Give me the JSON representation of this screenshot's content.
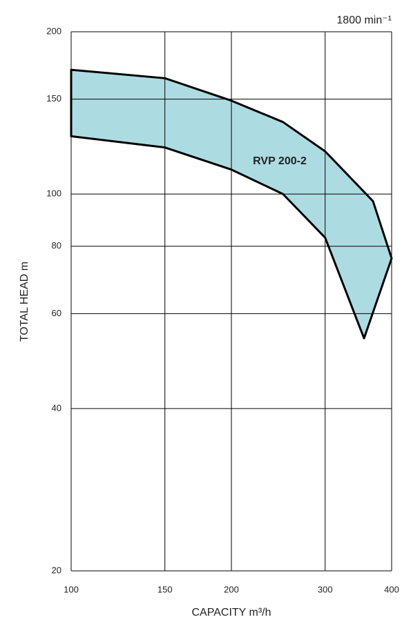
{
  "chart_data": {
    "type": "area",
    "title": "1800 min⁻¹",
    "x_label": "CAPACITY  m³/h",
    "y_label": "TOTAL HEAD  m",
    "annotation": "RVP 200-2",
    "xlog": true,
    "ylog": true,
    "grid": true,
    "fill": "#acdce2",
    "stroke": "#000000",
    "xlim": [
      100,
      400
    ],
    "ylim": [
      20,
      200
    ],
    "xticks": [
      100,
      150,
      200,
      300,
      400
    ],
    "yticks": [
      20,
      40,
      60,
      80,
      100,
      150,
      200
    ],
    "upper": {
      "x": [
        100,
        150,
        200,
        250,
        300,
        369,
        400
      ],
      "values": [
        170,
        164,
        149,
        136,
        120,
        97,
        76
      ]
    },
    "lower": {
      "x": [
        355,
        300,
        250,
        200,
        150,
        100
      ],
      "values": [
        54,
        83,
        100,
        111,
        122,
        128
      ]
    }
  }
}
